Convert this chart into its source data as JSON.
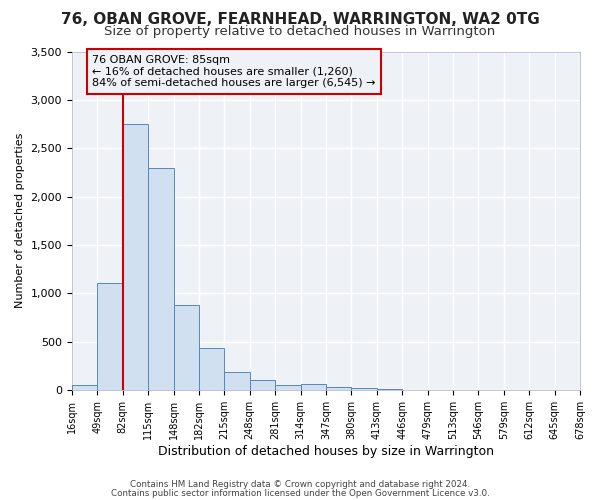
{
  "title1": "76, OBAN GROVE, FEARNHEAD, WARRINGTON, WA2 0TG",
  "title2": "Size of property relative to detached houses in Warrington",
  "xlabel": "Distribution of detached houses by size in Warrington",
  "ylabel": "Number of detached properties",
  "bar_values": [
    50,
    1110,
    2750,
    2300,
    880,
    430,
    185,
    100,
    55,
    60,
    30,
    15,
    5,
    2,
    1,
    0,
    0,
    0,
    0,
    0
  ],
  "bin_labels": [
    "16sqm",
    "49sqm",
    "82sqm",
    "115sqm",
    "148sqm",
    "182sqm",
    "215sqm",
    "248sqm",
    "281sqm",
    "314sqm",
    "347sqm",
    "380sqm",
    "413sqm",
    "446sqm",
    "479sqm",
    "513sqm",
    "546sqm",
    "579sqm",
    "612sqm",
    "645sqm",
    "678sqm"
  ],
  "bar_color": "#d0e0f0",
  "bar_edge_color": "#5588bb",
  "vline_color": "#cc0000",
  "annotation_title": "76 OBAN GROVE: 85sqm",
  "annotation_line1": "← 16% of detached houses are smaller (1,260)",
  "annotation_line2": "84% of semi-detached houses are larger (6,545) →",
  "annotation_box_edge_color": "#cc0000",
  "ylim": [
    0,
    3500
  ],
  "yticks": [
    0,
    500,
    1000,
    1500,
    2000,
    2500,
    3000,
    3500
  ],
  "footer1": "Contains HM Land Registry data © Crown copyright and database right 2024.",
  "footer2": "Contains public sector information licensed under the Open Government Licence v3.0.",
  "bg_color": "#ffffff",
  "plot_bg_color": "#eef2f7",
  "grid_color": "#ffffff",
  "title_fontsize": 11,
  "subtitle_fontsize": 9.5
}
